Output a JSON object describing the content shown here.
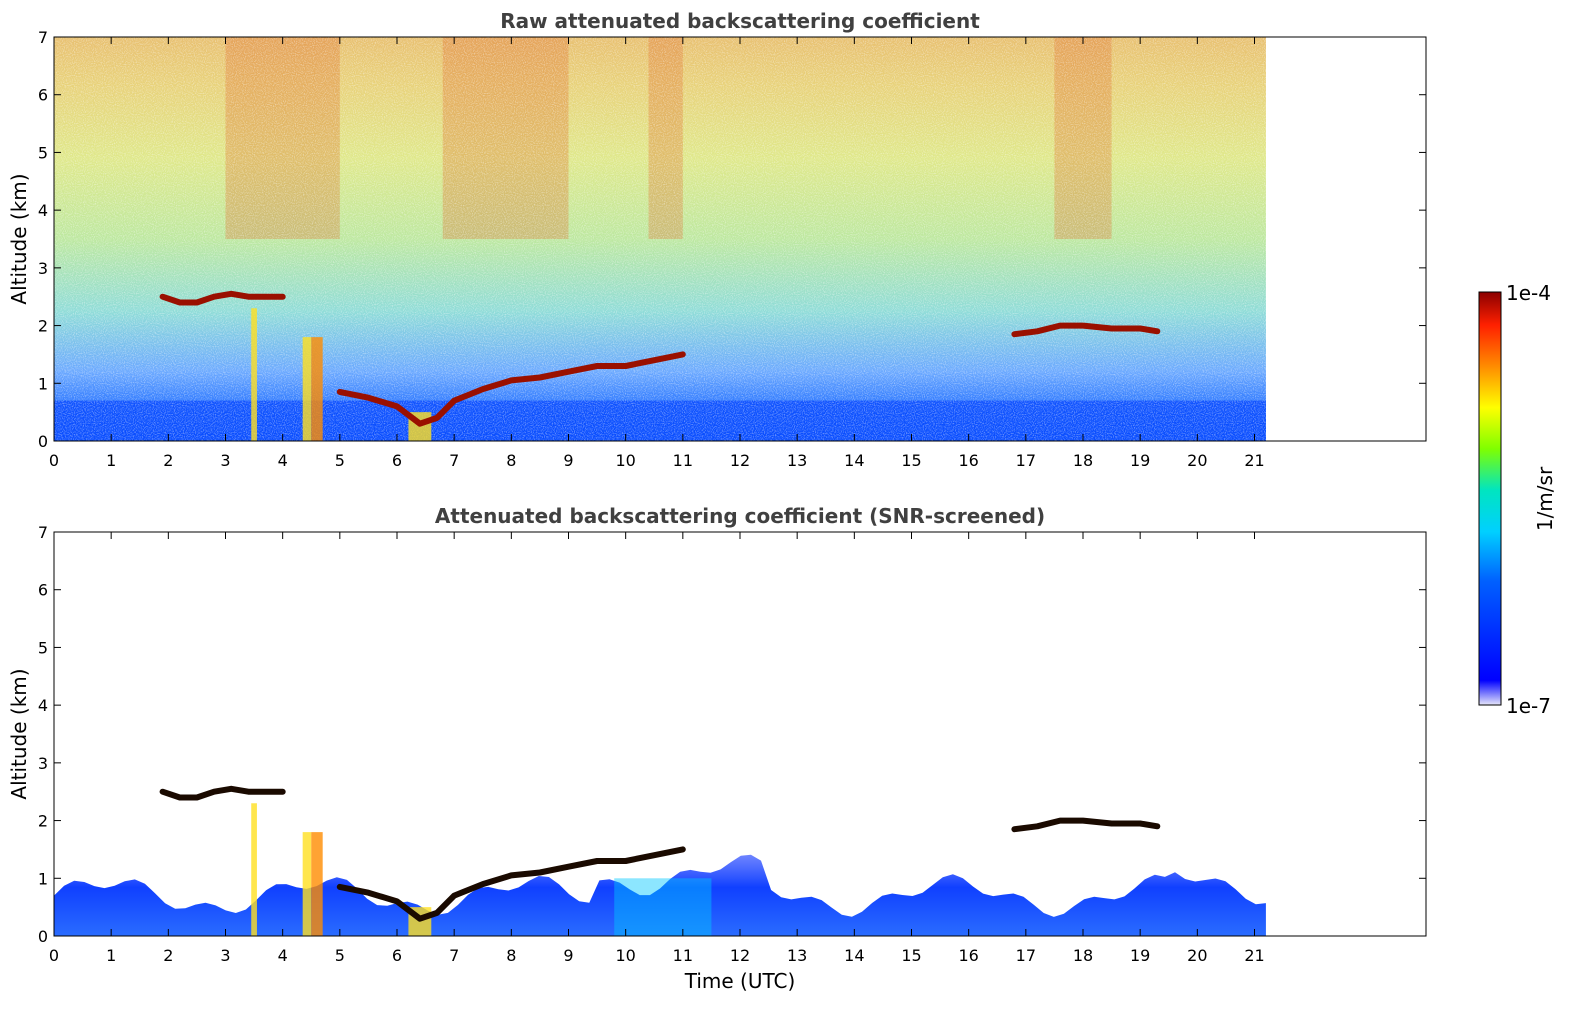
{
  "chart_data": [
    {
      "type": "heatmap",
      "title": "Raw attenuated backscattering coefficient",
      "xlabel": "",
      "ylabel": "Altitude (km)",
      "xlim": [
        0,
        24
      ],
      "ylim": [
        0,
        7
      ],
      "xticks": [
        "0",
        "1",
        "2",
        "3",
        "4",
        "5",
        "6",
        "7",
        "8",
        "9",
        "10",
        "11",
        "12",
        "13",
        "14",
        "15",
        "16",
        "17",
        "18",
        "19",
        "20",
        "21"
      ],
      "yticks": [
        "0",
        "1",
        "2",
        "3",
        "4",
        "5",
        "6",
        "7"
      ],
      "data_extent_hours": 21.2,
      "grid": false,
      "cloud_layers": [
        {
          "x": [
            1.9,
            2.2,
            2.5,
            2.8,
            3.1,
            3.4,
            3.7,
            4.0
          ],
          "y": [
            2.5,
            2.4,
            2.4,
            2.5,
            2.55,
            2.5,
            2.5,
            2.5
          ]
        },
        {
          "x": [
            5.0,
            5.5,
            6.0,
            6.4,
            6.7,
            7.0,
            7.5,
            8.0,
            8.5,
            9.0,
            9.5,
            10.0,
            10.5,
            11.0
          ],
          "y": [
            0.85,
            0.75,
            0.6,
            0.3,
            0.4,
            0.7,
            0.9,
            1.05,
            1.1,
            1.2,
            1.3,
            1.3,
            1.4,
            1.5
          ]
        },
        {
          "x": [
            16.8,
            17.2,
            17.6,
            18.0,
            18.5,
            19.0,
            19.3
          ],
          "y": [
            1.85,
            1.9,
            2.0,
            2.0,
            1.95,
            1.95,
            1.9
          ]
        }
      ]
    },
    {
      "type": "heatmap",
      "title": "Attenuated backscattering coefficient (SNR-screened)",
      "xlabel": "Time (UTC)",
      "ylabel": "Altitude (km)",
      "xlim": [
        0,
        24
      ],
      "ylim": [
        0,
        7
      ],
      "xticks": [
        "0",
        "1",
        "2",
        "3",
        "4",
        "5",
        "6",
        "7",
        "8",
        "9",
        "10",
        "11",
        "12",
        "13",
        "14",
        "15",
        "16",
        "17",
        "18",
        "19",
        "20",
        "21"
      ],
      "yticks": [
        "0",
        "1",
        "2",
        "3",
        "4",
        "5",
        "6",
        "7"
      ],
      "data_extent_hours": 21.2,
      "grid": false
    }
  ],
  "colorbar": {
    "label": "1/m/sr",
    "max_label": "1e-4",
    "min_label": "1e-7",
    "colors": [
      "#e6e6fa",
      "#0000ff",
      "#00bfff",
      "#00e5d0",
      "#7fff00",
      "#ffff00",
      "#ff8c00",
      "#ff2000",
      "#8b0000"
    ]
  }
}
